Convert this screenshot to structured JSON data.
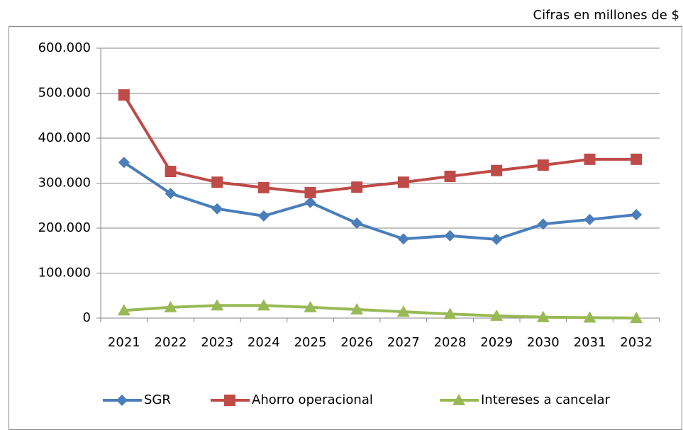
{
  "chart_data": {
    "type": "line",
    "annotation": "Cifras en millones de $",
    "categories": [
      "2021",
      "2022",
      "2023",
      "2024",
      "2025",
      "2026",
      "2027",
      "2028",
      "2029",
      "2030",
      "2031",
      "2032"
    ],
    "series": [
      {
        "name": "SGR",
        "color": "#4a7ebb",
        "marker": "diamond",
        "values": [
          346000,
          277000,
          243000,
          227000,
          257000,
          211000,
          176000,
          183000,
          175000,
          209000,
          219000,
          230000
        ]
      },
      {
        "name": "Ahorro operacional",
        "color": "#be4b48",
        "marker": "square",
        "values": [
          496000,
          326000,
          302000,
          290000,
          279000,
          291000,
          302000,
          315000,
          328000,
          340000,
          353000,
          353000
        ]
      },
      {
        "name": "Intereses a cancelar",
        "color": "#98b954",
        "marker": "triangle",
        "values": [
          17000,
          24000,
          28000,
          28000,
          24000,
          19000,
          14000,
          9000,
          5000,
          2000,
          1000,
          0
        ]
      }
    ],
    "ylim": [
      0,
      600000
    ],
    "yticks": [
      0,
      {
        "value": 100000,
        "label": "100.000"
      },
      {
        "value": 200000,
        "label": "200.000"
      },
      {
        "value": 300000,
        "label": "300.000"
      },
      {
        "value": 400000,
        "label": "400.000"
      },
      {
        "value": 500000,
        "label": "500.000"
      },
      {
        "value": 600000,
        "label": "600.000"
      }
    ],
    "grid": true,
    "legend": "bottom"
  }
}
